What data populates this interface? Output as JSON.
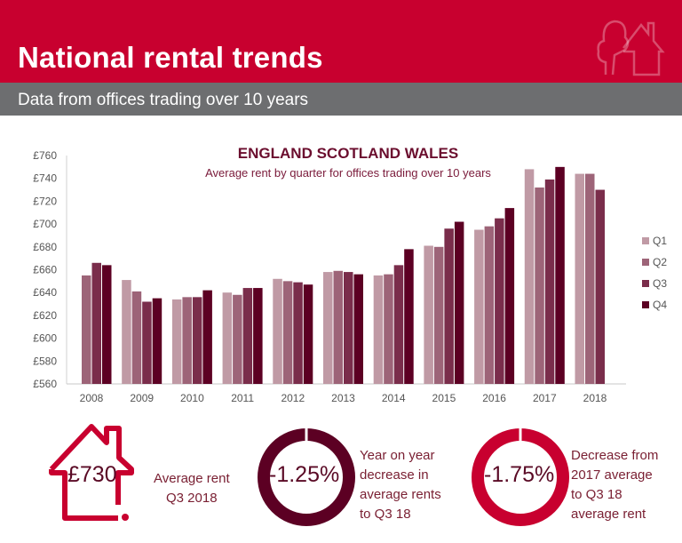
{
  "header": {
    "title": "National rental trends",
    "subtitle": "Data from offices trading over 10 years",
    "icon": "tree-house-icon"
  },
  "colors": {
    "brand": "#c8002f",
    "gray": "#6d6e70",
    "q1": "#c09aa5",
    "q2": "#9d6478",
    "q3": "#7a2d4b",
    "q4": "#5c0023",
    "ring1": "#5c0023",
    "ring2": "#c8002f"
  },
  "chart_data": {
    "type": "bar",
    "title": "ENGLAND SCOTLAND WALES",
    "subtitle": "Average rent by quarter for offices trading over 10 years",
    "categories": [
      "2008",
      "2009",
      "2010",
      "2011",
      "2012",
      "2013",
      "2014",
      "2015",
      "2016",
      "2017",
      "2018"
    ],
    "series": [
      {
        "name": "Q1",
        "values": [
          null,
          651,
          634,
          640,
          652,
          658,
          655,
          681,
          695,
          748,
          744
        ]
      },
      {
        "name": "Q2",
        "values": [
          655,
          641,
          636,
          638,
          650,
          659,
          656,
          680,
          698,
          732,
          744
        ]
      },
      {
        "name": "Q3",
        "values": [
          666,
          632,
          636,
          644,
          649,
          658,
          664,
          696,
          705,
          739,
          730
        ]
      },
      {
        "name": "Q4",
        "values": [
          664,
          635,
          642,
          644,
          647,
          656,
          678,
          702,
          714,
          750,
          null
        ]
      }
    ],
    "ylim": [
      560,
      760
    ],
    "yticks": [
      "£560",
      "£580",
      "£600",
      "£620",
      "£640",
      "£660",
      "£680",
      "£700",
      "£720",
      "£740",
      "£760"
    ],
    "legend": "right"
  },
  "stats": [
    {
      "value": "£730",
      "label_lines": [
        "Average rent",
        "Q3 2018"
      ]
    },
    {
      "value": "-1.25%",
      "label_lines": [
        "Year on year",
        "decrease in",
        "average rents",
        "to Q3 18"
      ]
    },
    {
      "value": "-1.75%",
      "label_lines": [
        "Decrease from",
        "2017 average",
        "to Q3 18",
        "average rent"
      ]
    }
  ]
}
